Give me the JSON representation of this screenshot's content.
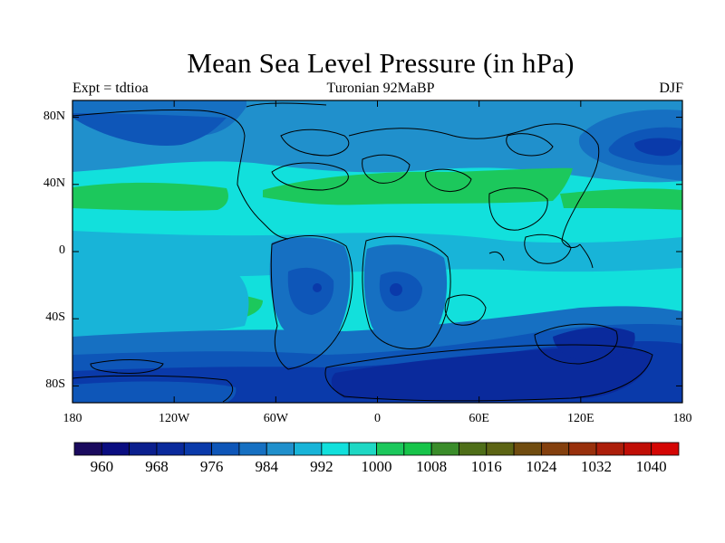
{
  "title": "Mean Sea Level Pressure (in hPa)",
  "subtitle_left": "Expt = tdtioa",
  "subtitle_center": "Turonian  92MaBP",
  "subtitle_right": "DJF",
  "map": {
    "lat_ticks": [
      "80N",
      "40N",
      "0",
      "40S",
      "80S"
    ],
    "lat_values": [
      80,
      40,
      0,
      -40,
      -80
    ],
    "lon_ticks": [
      "180",
      "120W",
      "60W",
      "0",
      "60E",
      "120E",
      "180"
    ],
    "lon_values": [
      -180,
      -120,
      -60,
      0,
      60,
      120,
      180
    ],
    "lat_range": [
      -90,
      90
    ],
    "lon_range": [
      -180,
      180
    ],
    "variable": "mean sea level pressure",
    "units": "hPa"
  },
  "colorbar": {
    "colors": [
      "#1a0a5e",
      "#0a0d80",
      "#0b1f8e",
      "#0a2a9c",
      "#0a3aaa",
      "#0e56b8",
      "#1670c2",
      "#2090cc",
      "#18b4d8",
      "#12e0dc",
      "#1ed8c4",
      "#1cc85c",
      "#17c44a",
      "#3a8c2a",
      "#4e6e18",
      "#5c6414",
      "#704c10",
      "#84400e",
      "#98300c",
      "#ac1e0a",
      "#c00e06",
      "#d40604"
    ],
    "labels": [
      "960",
      "968",
      "976",
      "984",
      "992",
      "1000",
      "1008",
      "1016",
      "1024",
      "1032",
      "1040"
    ]
  }
}
